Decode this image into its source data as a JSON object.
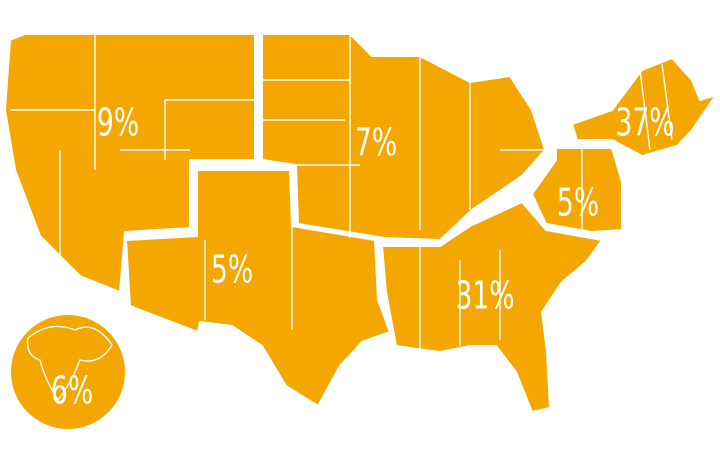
{
  "regions": [
    {
      "label": "9%"
    },
    {
      "label": "5%"
    },
    {
      "label": "7%"
    },
    {
      "label": "37%"
    },
    {
      "label": "5%"
    },
    {
      "label": "31%"
    },
    {
      "label": "6%"
    }
  ]
}
